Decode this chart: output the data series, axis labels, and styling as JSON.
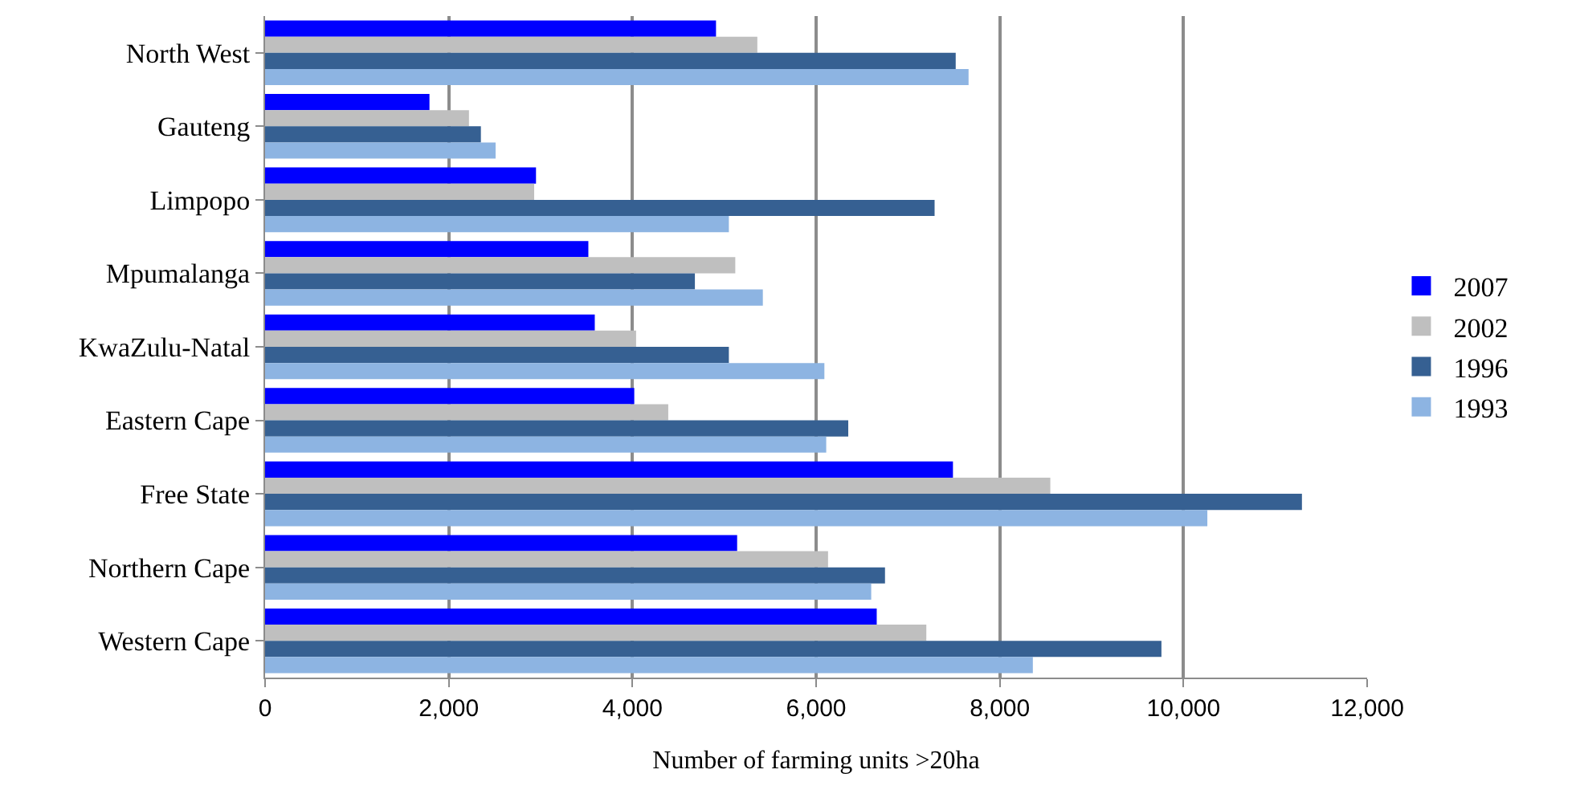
{
  "chart_data": {
    "type": "bar",
    "orientation": "horizontal",
    "xlabel": "Number of farming units >20ha",
    "categories": [
      "North West",
      "Gauteng",
      "Limpopo",
      "Mpumalanga",
      "KwaZulu-Natal",
      "Eastern Cape",
      "Free State",
      "Northern Cape",
      "Western Cape"
    ],
    "series": [
      {
        "name": "2007",
        "color": "#0000ff",
        "values": [
          4910,
          1790,
          2950,
          3520,
          3590,
          4020,
          7490,
          5140,
          6660
        ]
      },
      {
        "name": "2002",
        "color": "#bfbfbf",
        "values": [
          5360,
          2220,
          2930,
          5120,
          4040,
          4390,
          8550,
          6130,
          7200
        ]
      },
      {
        "name": "1996",
        "color": "#366092",
        "values": [
          7520,
          2350,
          7290,
          4680,
          5050,
          6350,
          11290,
          6750,
          9760
        ]
      },
      {
        "name": "1993",
        "color": "#8db4e2",
        "values": [
          7660,
          2510,
          5050,
          5420,
          6090,
          6110,
          10260,
          6600,
          8360
        ]
      }
    ],
    "xlim": [
      0,
      12000
    ],
    "xticks": [
      0,
      {
        "value": 2000,
        "label": "2,000"
      },
      {
        "value": 4000,
        "label": "4,000"
      },
      {
        "value": 6000,
        "label": "6,000"
      },
      {
        "value": 8000,
        "label": "8,000"
      },
      {
        "value": 10000,
        "label": "10,000"
      },
      {
        "value": 12000,
        "label": "12,000"
      }
    ],
    "grid": "x",
    "legend": "right"
  }
}
